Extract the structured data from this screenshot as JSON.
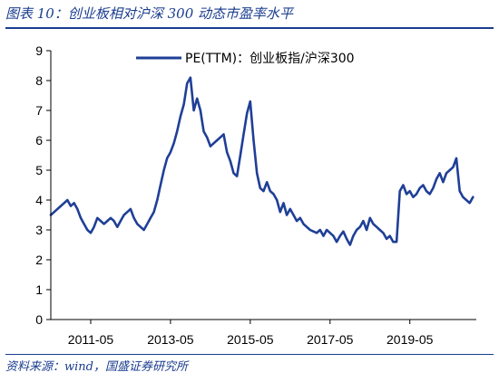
{
  "figure": {
    "title": "图表 10：创业板相对沪深 300 动态市盈率水平",
    "source": "资料来源：wind，国盛证券研究所"
  },
  "colors": {
    "series": "#1f3f97",
    "accent": "#1a3d8f",
    "axis": "#000000"
  },
  "chart_data": {
    "type": "line",
    "title": "",
    "xlabel": "",
    "ylabel": "",
    "ylim": [
      0,
      9
    ],
    "yticks": [
      0,
      1,
      2,
      3,
      4,
      5,
      6,
      7,
      8,
      9
    ],
    "xlim": [
      "2010-05",
      "2021-01"
    ],
    "xticks": [
      "2011-05",
      "2013-05",
      "2015-05",
      "2017-05",
      "2019-05"
    ],
    "grid": false,
    "legend": "top",
    "series": [
      {
        "name": "PE(TTM)：创业板指/沪深300",
        "x": [
          "2010-05",
          "2010-06",
          "2010-07",
          "2010-08",
          "2010-09",
          "2010-10",
          "2010-11",
          "2010-12",
          "2011-01",
          "2011-02",
          "2011-03",
          "2011-04",
          "2011-05",
          "2011-06",
          "2011-07",
          "2011-08",
          "2011-09",
          "2011-10",
          "2011-11",
          "2011-12",
          "2012-01",
          "2012-02",
          "2012-03",
          "2012-04",
          "2012-05",
          "2012-06",
          "2012-07",
          "2012-08",
          "2012-09",
          "2012-10",
          "2012-11",
          "2012-12",
          "2013-01",
          "2013-02",
          "2013-03",
          "2013-04",
          "2013-05",
          "2013-06",
          "2013-07",
          "2013-08",
          "2013-09",
          "2013-10",
          "2013-11",
          "2013-12",
          "2014-01",
          "2014-02",
          "2014-03",
          "2014-04",
          "2014-05",
          "2014-06",
          "2014-07",
          "2014-08",
          "2014-09",
          "2014-10",
          "2014-11",
          "2014-12",
          "2015-01",
          "2015-02",
          "2015-03",
          "2015-04",
          "2015-05",
          "2015-06",
          "2015-07",
          "2015-08",
          "2015-09",
          "2015-10",
          "2015-11",
          "2015-12",
          "2016-01",
          "2016-02",
          "2016-03",
          "2016-04",
          "2016-05",
          "2016-06",
          "2016-07",
          "2016-08",
          "2016-09",
          "2016-10",
          "2016-11",
          "2016-12",
          "2017-01",
          "2017-02",
          "2017-03",
          "2017-04",
          "2017-05",
          "2017-06",
          "2017-07",
          "2017-08",
          "2017-09",
          "2017-10",
          "2017-11",
          "2017-12",
          "2018-01",
          "2018-02",
          "2018-03",
          "2018-04",
          "2018-05",
          "2018-06",
          "2018-07",
          "2018-08",
          "2018-09",
          "2018-10",
          "2018-11",
          "2018-12",
          "2019-01",
          "2019-02",
          "2019-03",
          "2019-04",
          "2019-05",
          "2019-06",
          "2019-07",
          "2019-08",
          "2019-09",
          "2019-10",
          "2019-11",
          "2019-12",
          "2020-01",
          "2020-02",
          "2020-03",
          "2020-04",
          "2020-05",
          "2020-06",
          "2020-07",
          "2020-08",
          "2020-09",
          "2020-10",
          "2020-11",
          "2020-12"
        ],
        "y": [
          3.5,
          3.6,
          3.7,
          3.8,
          3.9,
          4.0,
          3.8,
          3.9,
          3.7,
          3.4,
          3.2,
          3.0,
          2.9,
          3.1,
          3.4,
          3.3,
          3.2,
          3.3,
          3.4,
          3.3,
          3.1,
          3.3,
          3.5,
          3.6,
          3.7,
          3.4,
          3.2,
          3.1,
          3.0,
          3.2,
          3.4,
          3.6,
          4.0,
          4.5,
          5.0,
          5.4,
          5.6,
          5.9,
          6.3,
          6.8,
          7.2,
          7.9,
          8.1,
          7.0,
          7.4,
          7.0,
          6.3,
          6.1,
          5.8,
          5.9,
          6.0,
          6.1,
          6.2,
          5.6,
          5.3,
          4.9,
          4.8,
          5.5,
          6.2,
          6.9,
          7.3,
          6.0,
          4.9,
          4.4,
          4.3,
          4.6,
          4.3,
          4.2,
          4.0,
          3.6,
          3.9,
          3.5,
          3.7,
          3.5,
          3.3,
          3.4,
          3.2,
          3.1,
          3.0,
          2.95,
          2.9,
          3.0,
          2.8,
          3.0,
          2.9,
          2.8,
          2.6,
          2.8,
          2.95,
          2.7,
          2.5,
          2.8,
          3.0,
          3.1,
          3.3,
          3.0,
          3.4,
          3.2,
          3.1,
          3.0,
          2.9,
          2.7,
          2.8,
          2.6,
          2.6,
          4.3,
          4.5,
          4.2,
          4.3,
          4.1,
          4.2,
          4.4,
          4.5,
          4.3,
          4.2,
          4.4,
          4.7,
          4.9,
          4.6,
          4.9,
          5.0,
          5.1,
          5.4,
          4.3,
          4.1,
          4.0,
          3.9,
          4.1
        ]
      }
    ]
  }
}
